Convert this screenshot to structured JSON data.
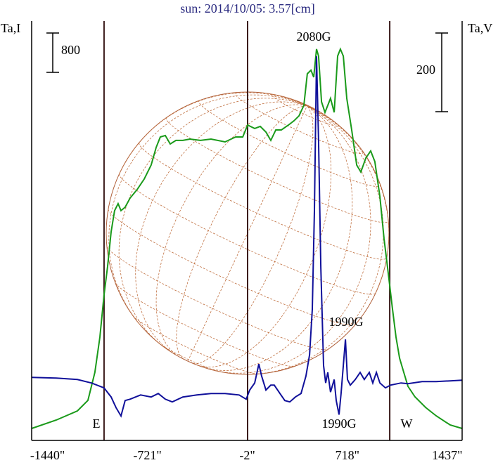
{
  "chart_data": {
    "type": "line",
    "title": "sun: 2014/10/05: 3.57[cm]",
    "ylabel": "Ta,I",
    "y2label": "Ta,V",
    "xlim": [
      -1554,
      1544
    ],
    "ylim": [
      0,
      8530
    ],
    "y2lim": [
      -146,
      920
    ],
    "xticks": [
      {
        "value": -1440,
        "label": "-1440\""
      },
      {
        "value": -721,
        "label": "-721\""
      },
      {
        "value": -2,
        "label": "-2\""
      },
      {
        "value": 718,
        "label": "718\""
      },
      {
        "value": 1437,
        "label": "1437\""
      }
    ],
    "vlines": [
      -1033,
      0,
      1023
    ],
    "ybar": 800,
    "y2bar": 200,
    "annotations": [
      "2080G",
      "1990G",
      "1990G",
      "E",
      "W"
    ],
    "series": [
      {
        "color": "#1a9a1a",
        "axis": "y",
        "x": [
          -1554,
          -1377,
          -1225,
          -1149,
          -1099,
          -1063,
          -1033,
          -1008,
          -982,
          -957,
          -932,
          -911,
          -881,
          -846,
          -795,
          -744,
          -694,
          -658,
          -628,
          -592,
          -557,
          -516,
          -466,
          -415,
          -339,
          -263,
          -162,
          -86,
          -35,
          0,
          51,
          91,
          132,
          167,
          203,
          243,
          294,
          334,
          370,
          405,
          430,
          456,
          476,
          496,
          511,
          532,
          557,
          577,
          597,
          623,
          648,
          668,
          689,
          714,
          749,
          785,
          815,
          851,
          886,
          916,
          952,
          982,
          1013,
          1043,
          1068,
          1094,
          1124,
          1154,
          1205,
          1281,
          1357,
          1458,
          1544
        ],
        "values": [
          243,
          414,
          600,
          815,
          1386,
          2101,
          2958,
          3530,
          4244,
          4673,
          4816,
          4673,
          4744,
          4930,
          5102,
          5316,
          5602,
          5959,
          6173,
          6202,
          6030,
          6102,
          6102,
          6130,
          6102,
          6130,
          6073,
          6173,
          6173,
          6416,
          6345,
          6388,
          6273,
          6102,
          6316,
          6316,
          6416,
          6502,
          6602,
          6816,
          7459,
          7531,
          7388,
          7960,
          7817,
          6888,
          6673,
          6816,
          6959,
          6673,
          7817,
          7960,
          7817,
          6959,
          6316,
          5602,
          5459,
          5745,
          5888,
          5673,
          4959,
          4101,
          3387,
          2672,
          2101,
          1672,
          1386,
          1100,
          886,
          672,
          500,
          314,
          243
        ]
      },
      {
        "color": "#10109a",
        "axis": "y2",
        "x": [
          -1554,
          -1377,
          -1225,
          -1124,
          -1033,
          -982,
          -947,
          -911,
          -881,
          -846,
          -770,
          -694,
          -643,
          -592,
          -542,
          -466,
          -365,
          -263,
          -162,
          -61,
          -10,
          15,
          51,
          81,
          101,
          132,
          167,
          192,
          233,
          268,
          304,
          344,
          385,
          420,
          446,
          466,
          481,
          496,
          511,
          527,
          547,
          562,
          577,
          597,
          623,
          638,
          658,
          673,
          689,
          704,
          719,
          739,
          775,
          810,
          840,
          876,
          901,
          927,
          952,
          992,
          1028,
          1104,
          1154,
          1256,
          1357,
          1458,
          1544
        ],
        "values": [
          14.3,
          12.5,
          8.9,
          0,
          -12.5,
          -35.7,
          -62.5,
          -83.9,
          -44.6,
          -41.1,
          -30.4,
          -35.7,
          -26.8,
          -41.1,
          -48.2,
          -35.7,
          -30.4,
          -26.8,
          -26.8,
          -30.4,
          -41.1,
          -17.9,
          0,
          48.2,
          17.9,
          -17.9,
          -5.4,
          -5.4,
          -26.8,
          -44.6,
          -48.2,
          -35.7,
          -26.8,
          17.9,
          71.4,
          187.5,
          437.6,
          830.5,
          616.2,
          294.7,
          44.6,
          0,
          26.8,
          -23.2,
          8.9,
          -44.6,
          -80.4,
          -26.8,
          44.6,
          110.7,
          8.9,
          -5.4,
          8.9,
          26.8,
          8.9,
          26.8,
          0,
          26.8,
          0,
          -12.5,
          -5.4,
          0,
          -1.8,
          3.6,
          3.6,
          5.4,
          7.1
        ]
      }
    ]
  }
}
